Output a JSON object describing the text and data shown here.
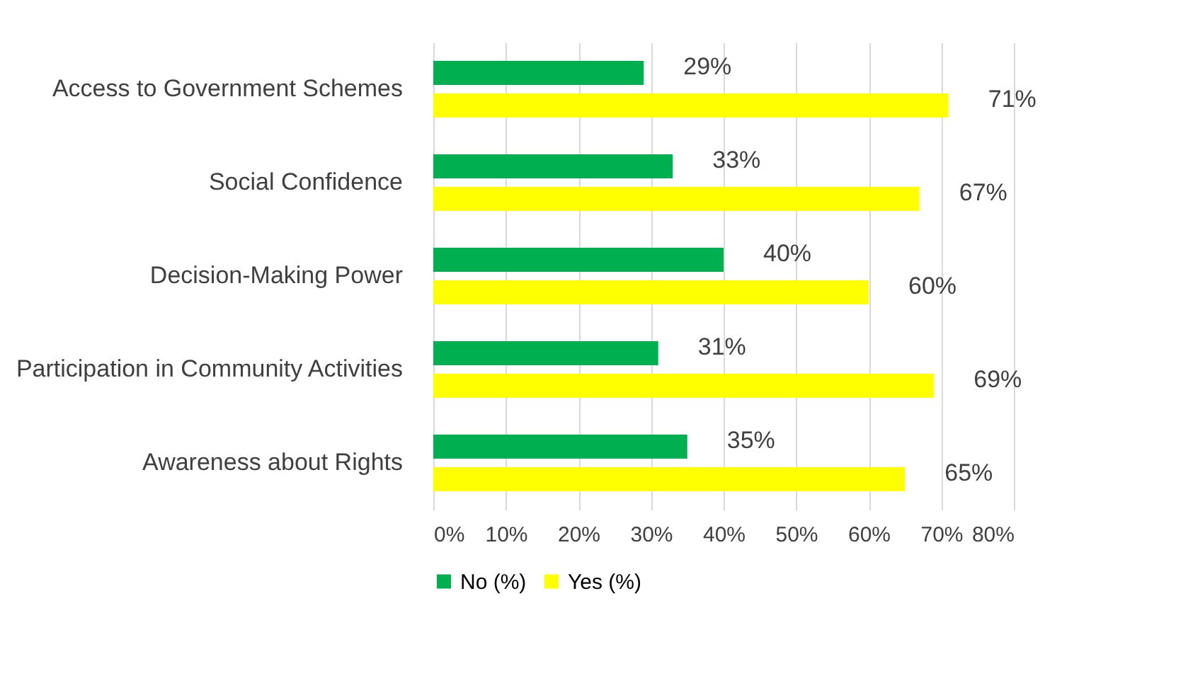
{
  "chart_data": {
    "type": "bar",
    "orientation": "horizontal",
    "categories": [
      "Access to Government Schemes",
      "Social Confidence",
      "Decision-Making Power",
      "Participation in Community Activities",
      "Awareness about Rights"
    ],
    "series": [
      {
        "name": "No (%)",
        "color": "#00b050",
        "values": [
          29,
          33,
          40,
          31,
          35
        ],
        "value_labels": [
          "29%",
          "33%",
          "40%",
          "31%",
          "35%"
        ]
      },
      {
        "name": "Yes (%)",
        "color": "#ffff00",
        "values": [
          71,
          67,
          60,
          69,
          65
        ],
        "value_labels": [
          "71%",
          "67%",
          "60%",
          "69%",
          "65%"
        ]
      }
    ],
    "xlim": [
      0,
      80
    ],
    "xticks": [
      {
        "value": 0,
        "label": "0%"
      },
      {
        "value": 10,
        "label": "10%"
      },
      {
        "value": 20,
        "label": "20%"
      },
      {
        "value": 30,
        "label": "30%"
      },
      {
        "value": 40,
        "label": "40%"
      },
      {
        "value": 50,
        "label": "50%"
      },
      {
        "value": 60,
        "label": "60%"
      },
      {
        "value": 70,
        "label": "70%"
      },
      {
        "value": 80,
        "label": "80%"
      }
    ],
    "grid": "x",
    "legend": "bottom"
  }
}
